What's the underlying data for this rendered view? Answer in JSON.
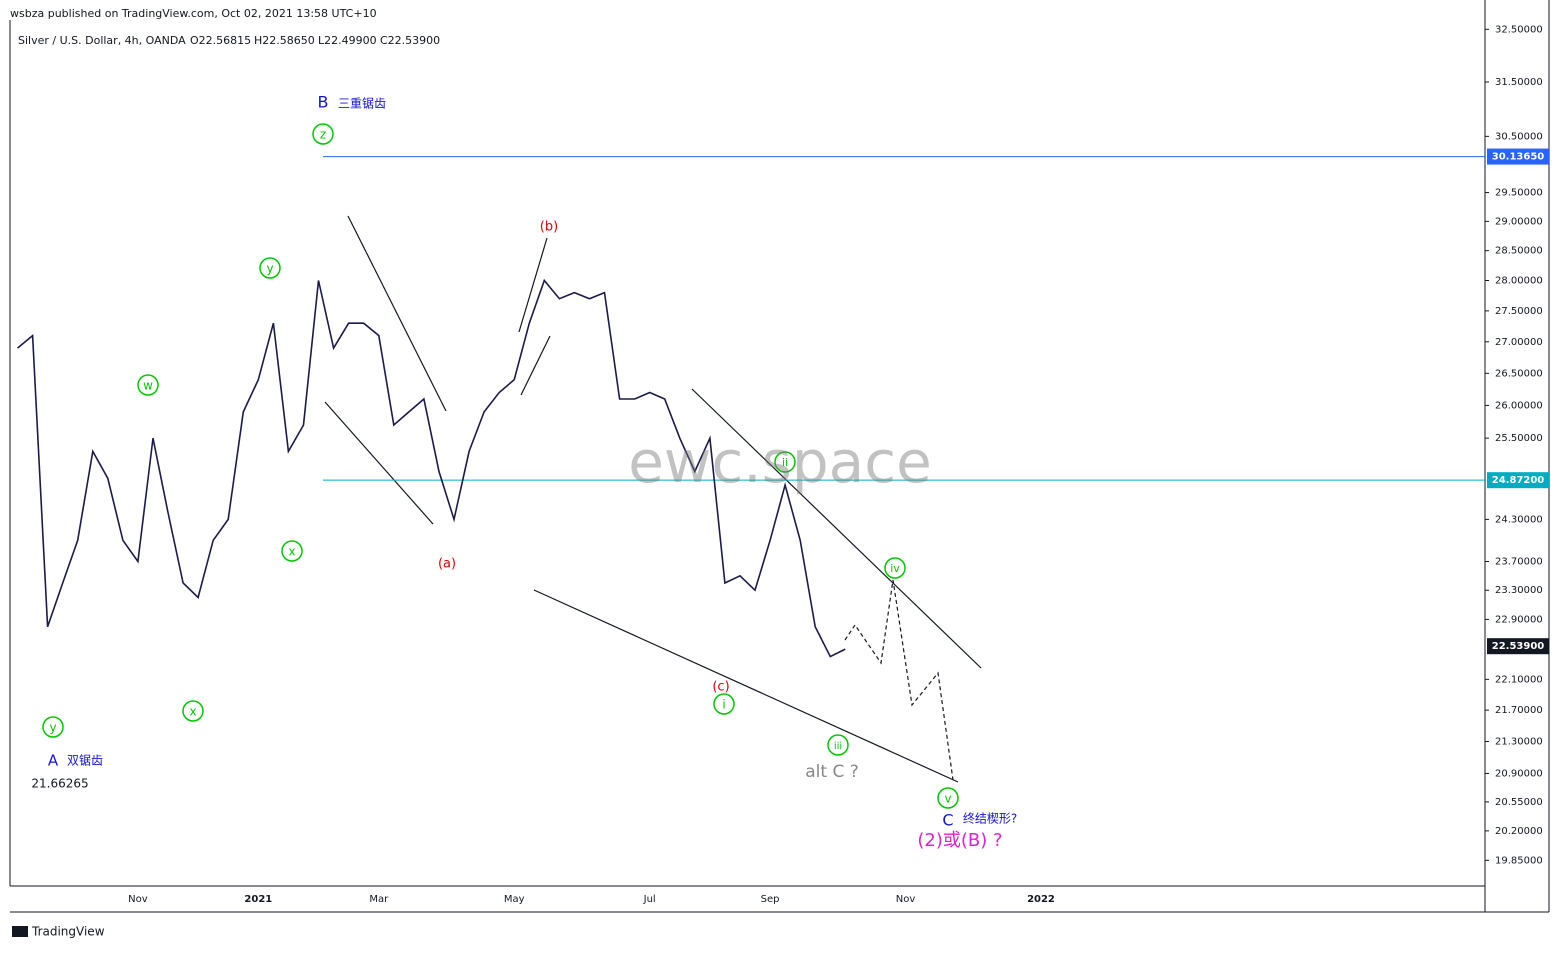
{
  "header": {
    "published": "wsbza published on TradingView.com, Oct 02, 2021 13:58 UTC+10",
    "symbol": "Silver / U.S. Dollar, 4h, OANDA",
    "ohlc": [
      "O22.56815",
      "H22.58650",
      "L22.49900",
      "C22.53900"
    ]
  },
  "footer": {
    "brand": "TradingView"
  },
  "chart_data": {
    "type": "line",
    "log_scale": true,
    "color": "#1b1a4b",
    "categories": [
      null,
      null,
      null,
      null,
      null,
      null,
      null,
      null,
      "Nov",
      null,
      null,
      null,
      null,
      null,
      null,
      null,
      "2021",
      null,
      null,
      null,
      null,
      null,
      null,
      null,
      "Mar",
      null,
      null,
      null,
      null,
      null,
      null,
      null,
      null,
      "May",
      null,
      null,
      null,
      null,
      null,
      null,
      null,
      null,
      "Jul",
      null,
      null,
      null,
      null,
      null,
      null,
      null,
      "Sep",
      null,
      null,
      null,
      null,
      null,
      null,
      null,
      null,
      "Nov",
      null,
      null,
      null,
      null,
      null,
      null,
      null,
      null,
      "2022",
      null,
      null,
      null,
      null,
      null,
      null,
      null,
      null,
      null,
      null,
      null,
      null,
      null,
      null,
      null,
      null,
      null,
      null,
      null,
      null,
      null,
      null,
      null,
      null,
      null,
      null,
      null,
      null,
      null
    ],
    "values": [
      26.9,
      27.1,
      22.8,
      23.4,
      24.0,
      25.3,
      24.9,
      24.0,
      23.7,
      25.5,
      24.4,
      23.4,
      23.2,
      24.0,
      24.3,
      25.9,
      26.4,
      27.3,
      25.3,
      25.7,
      28.0,
      26.9,
      27.3,
      27.3,
      27.1,
      25.7,
      25.9,
      26.1,
      25.0,
      24.3,
      25.3,
      25.9,
      26.2,
      26.4,
      27.3,
      28.0,
      27.7,
      27.8,
      27.7,
      27.8,
      26.1,
      26.1,
      26.2,
      26.1,
      25.5,
      25.0,
      25.5,
      23.4,
      23.5,
      23.3,
      24.0,
      24.8,
      24.0,
      22.8,
      22.4,
      22.5,
      null,
      null,
      null,
      null,
      null,
      null,
      null,
      null,
      null,
      null,
      null,
      null,
      null,
      null,
      null,
      null,
      null,
      null,
      null,
      null,
      null,
      null,
      null,
      null,
      null,
      null,
      null,
      null,
      null,
      null,
      null,
      null,
      null,
      null,
      null,
      null,
      null,
      null,
      null,
      null,
      null,
      null
    ],
    "ylim": [
      19.55,
      32.68
    ],
    "yticks": [
      {
        "value": 32.5,
        "label": "32.50000"
      },
      {
        "value": 31.5,
        "label": "31.50000"
      },
      {
        "value": 30.5,
        "label": "30.50000"
      },
      {
        "value": 29.5,
        "label": "29.50000"
      },
      {
        "value": 29,
        "label": "29.00000"
      },
      {
        "value": 28.5,
        "label": "28.50000"
      },
      {
        "value": 28,
        "label": "28.00000"
      },
      {
        "value": 27.5,
        "label": "27.50000"
      },
      {
        "value": 27,
        "label": "27.00000"
      },
      {
        "value": 26.5,
        "label": "26.50000"
      },
      {
        "value": 26,
        "label": "26.00000"
      },
      {
        "value": 25.5,
        "label": "25.50000"
      },
      {
        "value": 24.3,
        "label": "24.30000"
      },
      {
        "value": 23.7,
        "label": "23.70000"
      },
      {
        "value": 23.3,
        "label": "23.30000"
      },
      {
        "value": 22.9,
        "label": "22.90000"
      },
      {
        "value": 22.1,
        "label": "22.10000"
      },
      {
        "value": 21.7,
        "label": "21.70000"
      },
      {
        "value": 21.3,
        "label": "21.30000"
      },
      {
        "value": 20.9,
        "label": "20.90000"
      },
      {
        "value": 20.55,
        "label": "20.55000"
      },
      {
        "value": 20.2,
        "label": "20.20000"
      },
      {
        "value": 19.85,
        "label": "19.85000"
      }
    ],
    "levels": [
      {
        "value": 30.1365,
        "label": "30.13650",
        "color": "#2962ff"
      },
      {
        "value": 24.872,
        "label": "24.87200",
        "color": "#00acc1"
      },
      {
        "value": 22.539,
        "label": "22.53900",
        "color": "#131722"
      }
    ],
    "annotations": [
      "B",
      "三重锯齿",
      "z",
      "y",
      "w",
      "x",
      "y",
      "x",
      "A",
      "双锯齿",
      "21.66265",
      "(b)",
      "(a)",
      "(c)",
      "i",
      "ii",
      "iii",
      "iv",
      "v",
      "alt C ?",
      "C",
      "终结楔形?",
      "(2)或(B) ?",
      "ewc.space"
    ]
  }
}
